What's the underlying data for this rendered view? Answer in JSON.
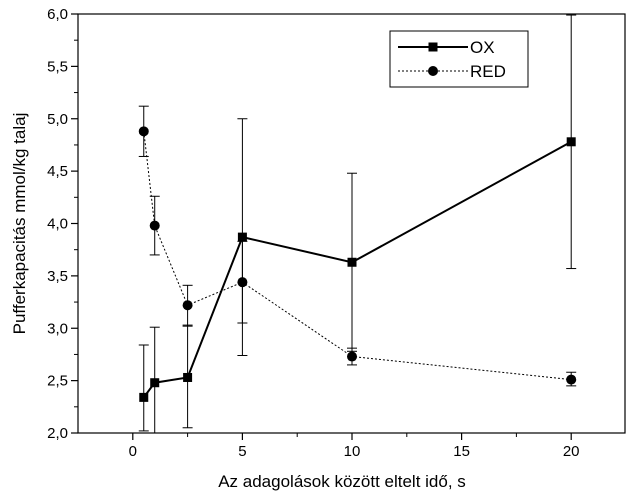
{
  "chart_data": {
    "type": "line",
    "title": "",
    "xlabel": "Az adagolások között eltelt idő, s",
    "ylabel": "Pufferkapacitás mmol/kg talaj",
    "xlim": [
      -2.5,
      22.5
    ],
    "ylim": [
      2.0,
      6.0
    ],
    "x_ticks": [
      0,
      5,
      10,
      15,
      20
    ],
    "x_tick_labels": [
      "0",
      "5",
      "10",
      "15",
      "20"
    ],
    "y_ticks": [
      2.0,
      2.5,
      3.0,
      3.5,
      4.0,
      4.5,
      5.0,
      5.5,
      6.0
    ],
    "y_tick_labels": [
      "2,0",
      "2,5",
      "3,0",
      "3,5",
      "4,0",
      "4,5",
      "5,0",
      "5,5",
      "6,0"
    ],
    "grid": false,
    "legend_position": "top-right",
    "series": [
      {
        "name": "OX",
        "marker": "square",
        "line_style": "solid",
        "color": "#000000",
        "x": [
          0.5,
          1,
          2.5,
          5,
          10,
          20
        ],
        "y": [
          2.34,
          2.48,
          2.53,
          3.87,
          3.63,
          4.78
        ],
        "err_low": [
          2.02,
          2.0,
          2.05,
          2.74,
          2.78,
          3.57
        ],
        "err_high": [
          2.84,
          3.01,
          3.03,
          5.0,
          4.48,
          5.99
        ]
      },
      {
        "name": "RED",
        "marker": "circle",
        "line_style": "dotted",
        "color": "#000000",
        "x": [
          0.5,
          1,
          2.5,
          5,
          10,
          20
        ],
        "y": [
          4.88,
          3.98,
          3.22,
          3.44,
          2.73,
          2.51
        ],
        "err_low": [
          4.64,
          3.7,
          3.02,
          3.05,
          2.65,
          2.45
        ],
        "err_high": [
          5.12,
          4.26,
          3.41,
          3.83,
          2.81,
          2.58
        ]
      }
    ]
  }
}
